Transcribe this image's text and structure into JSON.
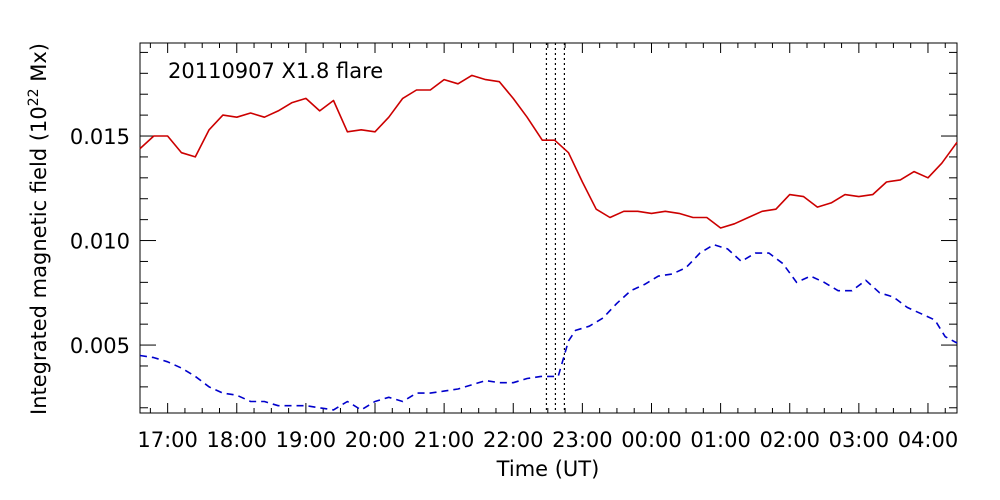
{
  "chart_data": {
    "type": "line",
    "annotation": "20110907  X1.8  flare",
    "xlabel": "Time  (UT)",
    "ylabel": "Integrated  magnetic  field  (10",
    "ylabel_sup": "22",
    "ylabel_tail": " Mx)",
    "x_unit": "hours since 2011-09-07 00:00 UT",
    "xlim": [
      16.6,
      28.42
    ],
    "ylim": [
      0.00175,
      0.01945
    ],
    "x_ticks": [
      {
        "value": 17,
        "label": "17:00"
      },
      {
        "value": 18,
        "label": "18:00"
      },
      {
        "value": 19,
        "label": "19:00"
      },
      {
        "value": 20,
        "label": "20:00"
      },
      {
        "value": 21,
        "label": "21:00"
      },
      {
        "value": 22,
        "label": "22:00"
      },
      {
        "value": 23,
        "label": "23:00"
      },
      {
        "value": 24,
        "label": "00:00"
      },
      {
        "value": 25,
        "label": "01:00"
      },
      {
        "value": 26,
        "label": "02:00"
      },
      {
        "value": 27,
        "label": "03:00"
      },
      {
        "value": 28,
        "label": "04:00"
      }
    ],
    "y_ticks": [
      {
        "value": 0.005,
        "label": "0.005"
      },
      {
        "value": 0.01,
        "label": "0.010"
      },
      {
        "value": 0.015,
        "label": "0.015"
      }
    ],
    "vlines": [
      22.48,
      22.61,
      22.74
    ],
    "series": [
      {
        "color": "#cc0000",
        "style": "solid",
        "points": [
          [
            16.6,
            0.0144
          ],
          [
            16.8,
            0.015
          ],
          [
            17.0,
            0.015
          ],
          [
            17.2,
            0.0142
          ],
          [
            17.4,
            0.014
          ],
          [
            17.6,
            0.0153
          ],
          [
            17.8,
            0.016
          ],
          [
            18.0,
            0.0159
          ],
          [
            18.2,
            0.0161
          ],
          [
            18.4,
            0.0159
          ],
          [
            18.6,
            0.0162
          ],
          [
            18.8,
            0.0166
          ],
          [
            19.0,
            0.0168
          ],
          [
            19.2,
            0.0162
          ],
          [
            19.4,
            0.0167
          ],
          [
            19.6,
            0.0152
          ],
          [
            19.8,
            0.0153
          ],
          [
            20.0,
            0.0152
          ],
          [
            20.2,
            0.0159
          ],
          [
            20.4,
            0.0168
          ],
          [
            20.6,
            0.0172
          ],
          [
            20.8,
            0.0172
          ],
          [
            21.0,
            0.0177
          ],
          [
            21.2,
            0.0175
          ],
          [
            21.4,
            0.0179
          ],
          [
            21.6,
            0.0177
          ],
          [
            21.8,
            0.0176
          ],
          [
            22.0,
            0.0168
          ],
          [
            22.2,
            0.0159
          ],
          [
            22.42,
            0.0148
          ],
          [
            22.6,
            0.0148
          ],
          [
            22.8,
            0.0142
          ],
          [
            23.0,
            0.0128
          ],
          [
            23.2,
            0.0115
          ],
          [
            23.4,
            0.0111
          ],
          [
            23.6,
            0.0114
          ],
          [
            23.8,
            0.0114
          ],
          [
            24.0,
            0.0113
          ],
          [
            24.2,
            0.0114
          ],
          [
            24.4,
            0.0113
          ],
          [
            24.6,
            0.0111
          ],
          [
            24.8,
            0.0111
          ],
          [
            25.0,
            0.0106
          ],
          [
            25.2,
            0.0108
          ],
          [
            25.4,
            0.0111
          ],
          [
            25.6,
            0.0114
          ],
          [
            25.8,
            0.0115
          ],
          [
            26.0,
            0.0122
          ],
          [
            26.2,
            0.0121
          ],
          [
            26.4,
            0.0116
          ],
          [
            26.6,
            0.0118
          ],
          [
            26.8,
            0.0122
          ],
          [
            27.0,
            0.0121
          ],
          [
            27.2,
            0.0122
          ],
          [
            27.4,
            0.0128
          ],
          [
            27.6,
            0.0129
          ],
          [
            27.8,
            0.0133
          ],
          [
            28.0,
            0.013
          ],
          [
            28.2,
            0.0137
          ],
          [
            28.42,
            0.0147
          ]
        ]
      },
      {
        "color": "#0000cc",
        "style": "dashed",
        "points": [
          [
            16.6,
            0.0045
          ],
          [
            16.8,
            0.0044
          ],
          [
            17.0,
            0.0042
          ],
          [
            17.2,
            0.0039
          ],
          [
            17.4,
            0.0035
          ],
          [
            17.6,
            0.003
          ],
          [
            17.8,
            0.0027
          ],
          [
            18.0,
            0.0026
          ],
          [
            18.2,
            0.0023
          ],
          [
            18.4,
            0.0023
          ],
          [
            18.6,
            0.0021
          ],
          [
            18.8,
            0.0021
          ],
          [
            19.0,
            0.0021
          ],
          [
            19.2,
            0.002
          ],
          [
            19.4,
            0.0019
          ],
          [
            19.6,
            0.0023
          ],
          [
            19.8,
            0.0019
          ],
          [
            20.0,
            0.0023
          ],
          [
            20.2,
            0.0025
          ],
          [
            20.4,
            0.0023
          ],
          [
            20.6,
            0.0027
          ],
          [
            20.8,
            0.0027
          ],
          [
            21.0,
            0.0028
          ],
          [
            21.2,
            0.0029
          ],
          [
            21.4,
            0.0031
          ],
          [
            21.6,
            0.0033
          ],
          [
            21.8,
            0.0032
          ],
          [
            22.0,
            0.0032
          ],
          [
            22.2,
            0.0034
          ],
          [
            22.4,
            0.0035
          ],
          [
            22.65,
            0.0035
          ],
          [
            22.8,
            0.0052
          ],
          [
            22.9,
            0.0057
          ],
          [
            23.1,
            0.0059
          ],
          [
            23.3,
            0.0063
          ],
          [
            23.5,
            0.007
          ],
          [
            23.7,
            0.0076
          ],
          [
            23.9,
            0.0079
          ],
          [
            24.1,
            0.0083
          ],
          [
            24.3,
            0.0084
          ],
          [
            24.5,
            0.0087
          ],
          [
            24.7,
            0.0094
          ],
          [
            24.9,
            0.0098
          ],
          [
            25.1,
            0.0096
          ],
          [
            25.3,
            0.009
          ],
          [
            25.5,
            0.0094
          ],
          [
            25.7,
            0.0094
          ],
          [
            25.9,
            0.0089
          ],
          [
            26.1,
            0.008
          ],
          [
            26.3,
            0.0083
          ],
          [
            26.5,
            0.008
          ],
          [
            26.7,
            0.0076
          ],
          [
            26.9,
            0.0076
          ],
          [
            27.1,
            0.0081
          ],
          [
            27.3,
            0.0075
          ],
          [
            27.5,
            0.0073
          ],
          [
            27.7,
            0.0068
          ],
          [
            27.9,
            0.0065
          ],
          [
            28.1,
            0.0062
          ],
          [
            28.25,
            0.0054
          ],
          [
            28.42,
            0.0051
          ]
        ]
      }
    ]
  }
}
